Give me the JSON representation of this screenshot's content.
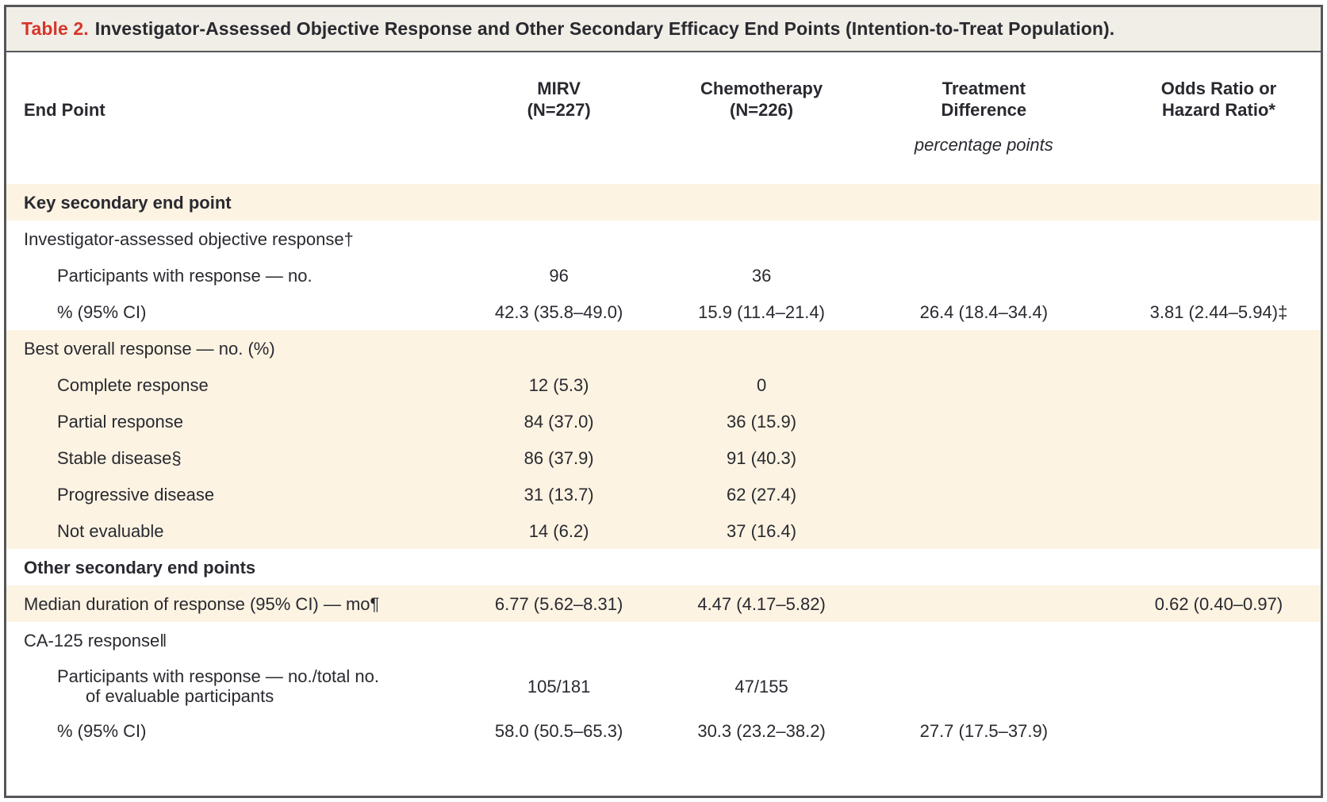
{
  "colors": {
    "accent_red": "#d6352b",
    "row_cream": "#fcf3e2",
    "titlebar_bg": "#f1eee7",
    "border_dark": "#55565a",
    "text_dark": "#292930"
  },
  "title": {
    "prefix": "Table 2.",
    "text": "Investigator-Assessed Objective Response and Other Secondary Efficacy End Points (Intention-to-Treat Population)."
  },
  "header": {
    "endpoint_label": "End Point",
    "columns": [
      {
        "line1": "MIRV",
        "line2": "(N=227)"
      },
      {
        "line1": "Chemotherapy",
        "line2": "(N=226)"
      },
      {
        "line1": "Treatment",
        "line2": "Difference"
      },
      {
        "line1": "Odds Ratio or",
        "line2": "Hazard Ratio*"
      }
    ],
    "unit_note": "percentage points"
  },
  "rows": [
    {
      "label": "Key secondary end point",
      "bold": true,
      "indent": 0,
      "shade": "cream",
      "values": [
        "",
        "",
        "",
        ""
      ]
    },
    {
      "label": "Investigator-assessed objective response†",
      "bold": false,
      "indent": 0,
      "shade": "white",
      "values": [
        "",
        "",
        "",
        ""
      ]
    },
    {
      "label": "Participants with response — no.",
      "bold": false,
      "indent": 1,
      "shade": "white",
      "values": [
        "96",
        "36",
        "",
        ""
      ]
    },
    {
      "label": "% (95% CI)",
      "bold": false,
      "indent": 1,
      "shade": "white",
      "values": [
        "42.3 (35.8–49.0)",
        "15.9 (11.4–21.4)",
        "26.4 (18.4–34.4)",
        "3.81 (2.44–5.94)‡"
      ]
    },
    {
      "label": "Best overall response — no. (%)",
      "bold": false,
      "indent": 0,
      "shade": "cream",
      "values": [
        "",
        "",
        "",
        ""
      ]
    },
    {
      "label": "Complete response",
      "bold": false,
      "indent": 1,
      "shade": "cream",
      "values": [
        "12 (5.3)",
        "0",
        "",
        ""
      ]
    },
    {
      "label": "Partial response",
      "bold": false,
      "indent": 1,
      "shade": "cream",
      "values": [
        "84 (37.0)",
        "36 (15.9)",
        "",
        ""
      ]
    },
    {
      "label": "Stable disease§",
      "bold": false,
      "indent": 1,
      "shade": "cream",
      "values": [
        "86 (37.9)",
        "91 (40.3)",
        "",
        ""
      ]
    },
    {
      "label": "Progressive disease",
      "bold": false,
      "indent": 1,
      "shade": "cream",
      "values": [
        "31 (13.7)",
        "62 (27.4)",
        "",
        ""
      ]
    },
    {
      "label": "Not evaluable",
      "bold": false,
      "indent": 1,
      "shade": "cream",
      "values": [
        "14 (6.2)",
        "37 (16.4)",
        "",
        ""
      ]
    },
    {
      "label": "Other secondary end points",
      "bold": true,
      "indent": 0,
      "shade": "white",
      "values": [
        "",
        "",
        "",
        ""
      ]
    },
    {
      "label": "Median duration of response (95% CI) — mo¶",
      "bold": false,
      "indent": 0,
      "shade": "cream",
      "values": [
        "6.77 (5.62–8.31)",
        "4.47 (4.17–5.82)",
        "",
        "0.62 (0.40–0.97)"
      ]
    },
    {
      "label": "CA-125 response‖",
      "bold": false,
      "indent": 0,
      "shade": "white",
      "values": [
        "",
        "",
        "",
        ""
      ]
    },
    {
      "label": "Participants with response — no./total no.",
      "label2": "of evaluable participants",
      "bold": false,
      "indent": 1,
      "shade": "white",
      "values": [
        "105/181",
        "47/155",
        "",
        ""
      ]
    },
    {
      "label": "% (95% CI)",
      "bold": false,
      "indent": 1,
      "shade": "white",
      "values": [
        "58.0 (50.5–65.3)",
        "30.3 (23.2–38.2)",
        "27.7 (17.5–37.9)",
        ""
      ]
    }
  ]
}
